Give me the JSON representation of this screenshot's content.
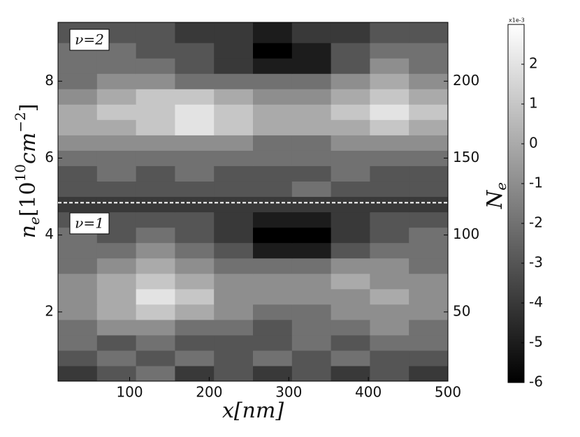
{
  "chart_data": {
    "type": "heatmap",
    "colormap": "gray",
    "xlabel": "x[nm]",
    "ylabel": [
      "n",
      "e",
      "[10",
      "10",
      "cm",
      "−2",
      "]"
    ],
    "y2label": [
      "N",
      "e"
    ],
    "xlim": [
      10,
      500
    ],
    "ylim": [
      0.2,
      9.53
    ],
    "y2lim": [
      5,
      238.25
    ],
    "xticks": [
      100,
      200,
      300,
      400,
      500
    ],
    "yticks": [
      2,
      4,
      6,
      8
    ],
    "y2ticks": [
      50,
      100,
      150,
      200
    ],
    "xbins": [
      10,
      59,
      108,
      157,
      206,
      255,
      304,
      353,
      402,
      451,
      500
    ],
    "ybins": [
      0.2,
      0.6,
      1.0,
      1.4,
      1.8,
      2.2,
      2.6,
      3.0,
      3.4,
      3.8,
      4.2,
      4.6,
      5.0,
      5.4,
      5.8,
      6.2,
      6.6,
      7.0,
      7.4,
      7.8,
      8.2,
      8.6,
      9.0,
      9.53
    ],
    "z": [
      [
        -4,
        -3,
        -2,
        -4,
        -3,
        -4,
        -3,
        -4,
        -3,
        -4
      ],
      [
        -3,
        -2,
        -3,
        -2,
        -3,
        -2,
        -3,
        -2,
        -3,
        -3
      ],
      [
        -2,
        -3,
        -2,
        -3,
        -3,
        -3,
        -2,
        -3,
        -2,
        -2
      ],
      [
        -2,
        -1,
        -1,
        -2,
        -2,
        -3,
        -2,
        -2,
        -1,
        -2
      ],
      [
        -1,
        0,
        1,
        0,
        -1,
        -2,
        -2,
        -1,
        -1,
        -1
      ],
      [
        -1,
        0,
        2,
        1,
        -1,
        -1,
        -1,
        -1,
        0,
        -1
      ],
      [
        -1,
        0,
        1,
        0,
        -1,
        -1,
        -1,
        0,
        -1,
        -1
      ],
      [
        -2,
        -1,
        0,
        -1,
        -2,
        -2,
        -2,
        -1,
        -1,
        -2
      ],
      [
        -2,
        -2,
        -1,
        -2,
        -3,
        -5,
        -5,
        -3,
        -2,
        -2
      ],
      [
        -2,
        -3,
        -2,
        -3,
        -4,
        -6,
        -6,
        -4,
        -3,
        -2
      ],
      [
        -3,
        -3,
        -3,
        -3,
        -4,
        -5,
        -5,
        -4,
        -3,
        -3
      ],
      [
        -4,
        -4,
        -4,
        -4,
        -4,
        -4,
        -4,
        -4,
        -4,
        -4
      ],
      [
        -3,
        -3,
        -3,
        -3,
        -3,
        -3,
        -2,
        -3,
        -3,
        -3
      ],
      [
        -3,
        -2,
        -3,
        -2,
        -3,
        -3,
        -3,
        -2,
        -3,
        -3
      ],
      [
        -2,
        -2,
        -2,
        -2,
        -2,
        -2,
        -2,
        -2,
        -2,
        -2
      ],
      [
        -1,
        -1,
        -1,
        -1,
        -1,
        -2,
        -2,
        -1,
        -1,
        -1
      ],
      [
        0,
        0,
        1,
        2,
        1,
        0,
        0,
        0,
        1,
        0
      ],
      [
        0,
        1,
        1,
        2,
        1,
        0,
        0,
        1,
        2,
        1
      ],
      [
        -1,
        0,
        1,
        1,
        0,
        -1,
        -1,
        0,
        1,
        0
      ],
      [
        -2,
        -1,
        -1,
        -2,
        -2,
        -2,
        -2,
        -1,
        0,
        -1
      ],
      [
        -2,
        -2,
        -2,
        -3,
        -4,
        -5,
        -5,
        -3,
        -1,
        -2
      ],
      [
        -2,
        -2,
        -3,
        -3,
        -4,
        -6,
        -5,
        -3,
        -2,
        -2
      ],
      [
        -3,
        -3,
        -3,
        -4,
        -4,
        -5,
        -4,
        -4,
        -3,
        -3
      ]
    ],
    "zlim": [
      -6,
      3
    ],
    "colorbar_ticks": [
      -6,
      -5,
      -4,
      -3,
      -2,
      -1,
      0,
      1,
      2
    ],
    "colorbar_label": "x1e-3",
    "hline": 4.84,
    "annotations": [
      "ν=2",
      "ν=1"
    ]
  }
}
